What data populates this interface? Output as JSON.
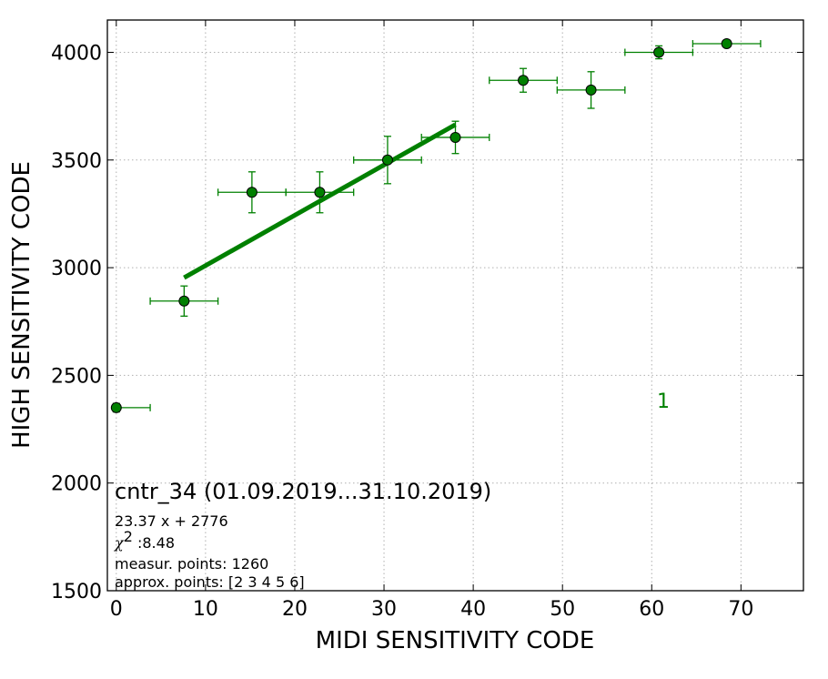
{
  "chart_data": {
    "type": "scatter",
    "title": "",
    "xlabel": "MIDI SENSITIVITY CODE",
    "ylabel": "HIGH SENSITIVITY CODE",
    "xlim": [
      -1,
      77
    ],
    "ylim": [
      1500,
      4150
    ],
    "xticks": [
      0,
      10,
      20,
      30,
      40,
      50,
      60,
      70
    ],
    "yticks": [
      1500,
      2000,
      2500,
      3000,
      3500,
      4000
    ],
    "grid": true,
    "color": "#008000",
    "series": [
      {
        "points": [
          {
            "x": 0.0,
            "y": 2350,
            "xerr_minus": 0.0,
            "xerr_plus": 3.8,
            "yerr": 20
          },
          {
            "x": 7.6,
            "y": 2845,
            "xerr_minus": 3.8,
            "xerr_plus": 3.8,
            "yerr": 70
          },
          {
            "x": 15.2,
            "y": 3350,
            "xerr_minus": 3.8,
            "xerr_plus": 3.8,
            "yerr": 95
          },
          {
            "x": 22.8,
            "y": 3350,
            "xerr_minus": 3.8,
            "xerr_plus": 3.8,
            "yerr": 95
          },
          {
            "x": 30.4,
            "y": 3500,
            "xerr_minus": 3.8,
            "xerr_plus": 3.8,
            "yerr": 110
          },
          {
            "x": 38.0,
            "y": 3605,
            "xerr_minus": 3.8,
            "xerr_plus": 3.8,
            "yerr": 75
          },
          {
            "x": 45.6,
            "y": 3870,
            "xerr_minus": 3.8,
            "xerr_plus": 3.8,
            "yerr": 55
          },
          {
            "x": 53.2,
            "y": 3825,
            "xerr_minus": 3.8,
            "xerr_plus": 3.8,
            "yerr": 85
          },
          {
            "x": 60.8,
            "y": 4000,
            "xerr_minus": 3.8,
            "xerr_plus": 3.8,
            "yerr": 30
          },
          {
            "x": 68.4,
            "y": 4040,
            "xerr_minus": 3.8,
            "xerr_plus": 3.8,
            "yerr": 0
          }
        ]
      }
    ],
    "fit_line": {
      "slope": 23.37,
      "intercept": 2776,
      "x_range": [
        7.6,
        38.0
      ]
    },
    "annotations": {
      "corner_label": "1",
      "title": "cntr_34 (01.09.2019...31.10.2019)",
      "equation": "23.37 x + 2776",
      "chi_symbol": "χ",
      "chi_exp": "2",
      "chi_value": " :8.48",
      "measur_points": "measur. points: 1260",
      "approx_points": "approx. points: [2 3 4 5 6]"
    }
  }
}
